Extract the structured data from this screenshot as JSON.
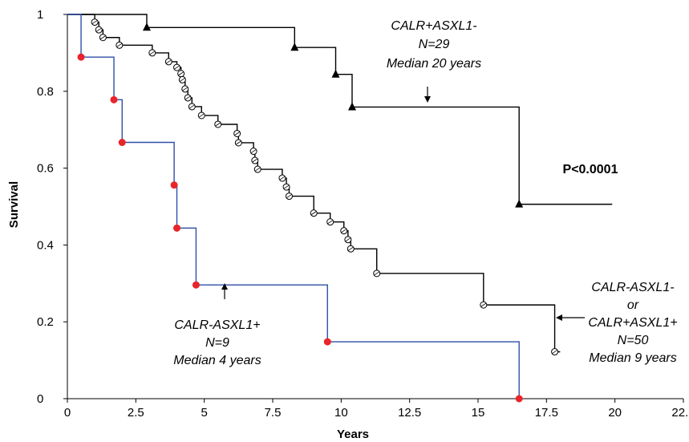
{
  "chart_data": {
    "type": "line",
    "title": "",
    "xlabel": "Years",
    "ylabel": "Survival",
    "xlim": [
      0,
      22.5
    ],
    "ylim": [
      0,
      1
    ],
    "x_ticks": [
      "0",
      "2.5",
      "5",
      "7.5",
      "10",
      "12.5",
      "15",
      "17.5",
      "20",
      "22.5"
    ],
    "y_ticks": [
      "0",
      "0.2",
      "0.4",
      "0.6",
      "0.8",
      "1"
    ],
    "grid": false,
    "p_value": "P<0.0001",
    "series": [
      {
        "key": "calr_pos_asxl1_neg",
        "color": "#000000",
        "marker": "triangle",
        "steps": [
          [
            0,
            1.0
          ],
          [
            2.9,
            0.966
          ],
          [
            8.3,
            0.914
          ],
          [
            9.8,
            0.844
          ],
          [
            10.4,
            0.759
          ],
          [
            16.5,
            0.506
          ],
          [
            19.9,
            0.506
          ]
        ],
        "markers": [
          [
            2.9,
            0.966
          ],
          [
            8.3,
            0.914
          ],
          [
            9.8,
            0.844
          ],
          [
            10.4,
            0.759
          ],
          [
            16.5,
            0.506
          ]
        ],
        "label_lines": [
          "CALR+ASXL1-",
          "N=29",
          "Median 20 years"
        ]
      },
      {
        "key": "calr_neg_asxl1_neg_or_calr_pos_asxl1_pos",
        "color": "#000000",
        "marker": "open-circle",
        "steps": [
          [
            0,
            1.0
          ],
          [
            1.0,
            0.98
          ],
          [
            1.15,
            0.96
          ],
          [
            1.3,
            0.94
          ],
          [
            1.9,
            0.92
          ],
          [
            3.1,
            0.9
          ],
          [
            3.7,
            0.877
          ],
          [
            4.0,
            0.862
          ],
          [
            4.15,
            0.846
          ],
          [
            4.2,
            0.83
          ],
          [
            4.3,
            0.806
          ],
          [
            4.4,
            0.783
          ],
          [
            4.55,
            0.76
          ],
          [
            4.9,
            0.737
          ],
          [
            5.5,
            0.714
          ],
          [
            6.2,
            0.69
          ],
          [
            6.25,
            0.666
          ],
          [
            6.8,
            0.644
          ],
          [
            6.85,
            0.62
          ],
          [
            6.95,
            0.597
          ],
          [
            7.85,
            0.574
          ],
          [
            8.0,
            0.551
          ],
          [
            8.1,
            0.527
          ],
          [
            9.0,
            0.483
          ],
          [
            9.6,
            0.46
          ],
          [
            10.1,
            0.437
          ],
          [
            10.25,
            0.414
          ],
          [
            10.35,
            0.39
          ],
          [
            11.3,
            0.326
          ],
          [
            15.2,
            0.244
          ],
          [
            17.8,
            0.122
          ],
          [
            18.0,
            0.122
          ]
        ],
        "markers": [
          [
            1.0,
            0.98
          ],
          [
            1.15,
            0.96
          ],
          [
            1.3,
            0.94
          ],
          [
            1.9,
            0.92
          ],
          [
            3.1,
            0.9
          ],
          [
            3.7,
            0.877
          ],
          [
            4.0,
            0.862
          ],
          [
            4.15,
            0.846
          ],
          [
            4.2,
            0.83
          ],
          [
            4.3,
            0.806
          ],
          [
            4.4,
            0.783
          ],
          [
            4.55,
            0.76
          ],
          [
            4.9,
            0.737
          ],
          [
            5.5,
            0.714
          ],
          [
            6.2,
            0.69
          ],
          [
            6.25,
            0.666
          ],
          [
            6.8,
            0.644
          ],
          [
            6.85,
            0.62
          ],
          [
            6.95,
            0.597
          ],
          [
            7.85,
            0.574
          ],
          [
            8.0,
            0.551
          ],
          [
            8.1,
            0.527
          ],
          [
            9.0,
            0.483
          ],
          [
            9.6,
            0.46
          ],
          [
            10.1,
            0.437
          ],
          [
            10.25,
            0.414
          ],
          [
            10.35,
            0.39
          ],
          [
            11.3,
            0.326
          ],
          [
            15.2,
            0.244
          ],
          [
            17.8,
            0.122
          ]
        ],
        "label_lines": [
          "CALR-ASXL1-",
          "or",
          "CALR+ASXL1+",
          "N=50",
          "Median 9 years"
        ]
      },
      {
        "key": "calr_neg_asxl1_pos",
        "color": "#2f4fa8",
        "marker": "red-dot",
        "marker_color": "#e8252a",
        "steps": [
          [
            0,
            1.0
          ],
          [
            0.5,
            0.889
          ],
          [
            1.7,
            0.778
          ],
          [
            2.0,
            0.667
          ],
          [
            3.9,
            0.556
          ],
          [
            4.0,
            0.444
          ],
          [
            4.7,
            0.296
          ],
          [
            9.5,
            0.148
          ],
          [
            16.5,
            0.0
          ]
        ],
        "markers": [
          [
            0.5,
            0.889
          ],
          [
            1.7,
            0.778
          ],
          [
            2.0,
            0.667
          ],
          [
            3.9,
            0.556
          ],
          [
            4.0,
            0.444
          ],
          [
            4.7,
            0.296
          ],
          [
            9.5,
            0.148
          ],
          [
            16.5,
            0.0
          ]
        ],
        "label_lines": [
          "CALR-ASXL1+",
          "N=9",
          "Median 4 years"
        ]
      }
    ]
  }
}
